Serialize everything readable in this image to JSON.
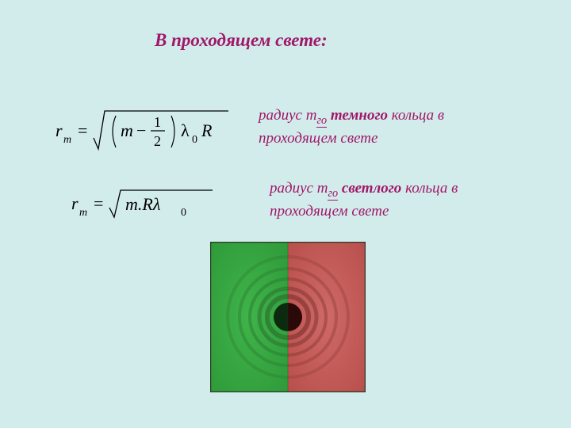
{
  "title": "В проходящем свете:",
  "desc1": {
    "prefix": "радиус m",
    "sub": "го",
    "mid": " ",
    "bold": "темного",
    "suffix": " кольца в проходящем свете"
  },
  "desc2": {
    "prefix": "радиус m",
    "sub": "го",
    "mid": " ",
    "bold": "светлого",
    "suffix": "   кольца в проходящем  свете"
  },
  "formula1": {
    "lhs_var": "r",
    "lhs_sub": "m",
    "inner_var": "m",
    "minus_num": "1",
    "minus_den": "2",
    "lambda_sub": "0",
    "tail": "R",
    "color": "#000000",
    "fontsize": 22
  },
  "formula2": {
    "lhs_var": "r",
    "lhs_sub": "m",
    "under_root": "m.Rλ",
    "lambda_sub": "0",
    "color": "#000000",
    "fontsize": 22
  },
  "diagram": {
    "width": 196,
    "height": 190,
    "border_color": "#2a3a28",
    "left_half": {
      "bg": "#3fb44a",
      "bg_grad": "#2f9a3a",
      "ring_base": "#2d7a32",
      "center": "#0c2a0e"
    },
    "right_half": {
      "bg": "#cf6a68",
      "bg_grad": "#b84f4c",
      "ring_base": "#8e3c38",
      "center": "#2a0908"
    },
    "rings": [
      76,
      61,
      48,
      36,
      26,
      18
    ],
    "ring_widths": [
      4,
      4,
      4,
      5,
      6,
      18
    ],
    "ring_opacity": [
      0.35,
      0.42,
      0.52,
      0.65,
      0.82,
      1.0
    ]
  }
}
